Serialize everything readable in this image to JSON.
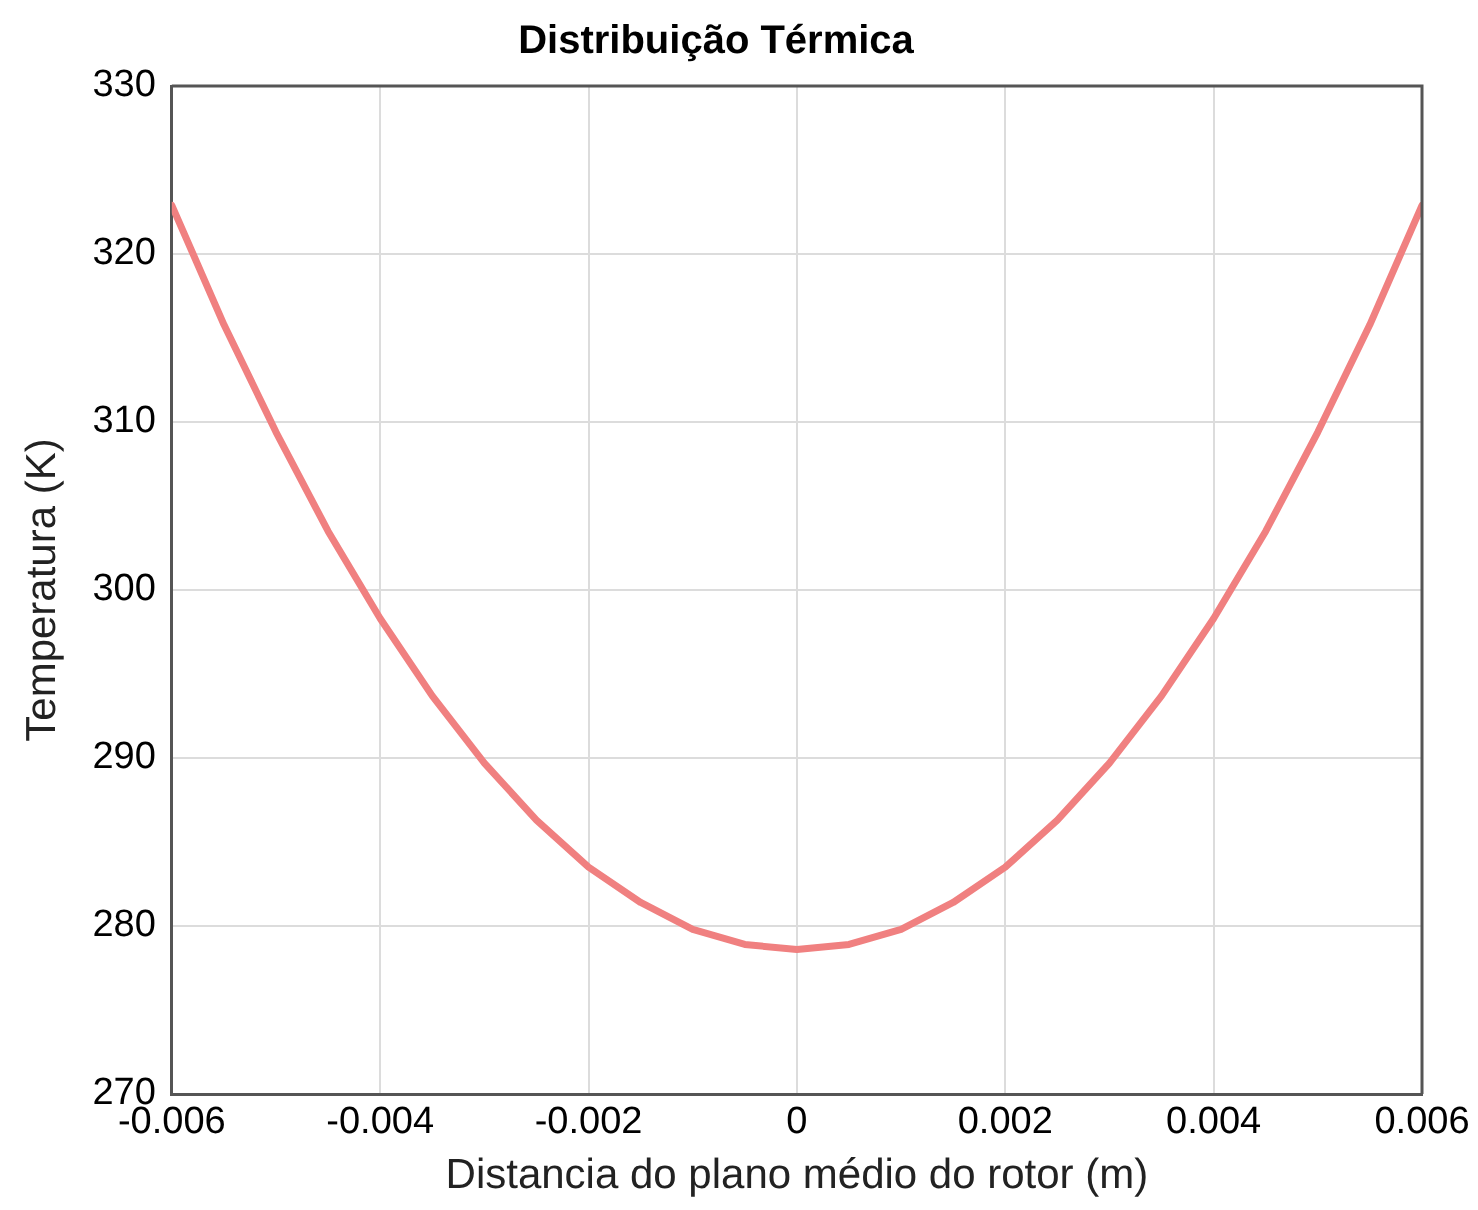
{
  "chart_data": {
    "type": "line",
    "title": "Distribuição Térmica",
    "xlabel": "Distancia do plano médio do rotor (m)",
    "ylabel": "Temperatura (K)",
    "x": [
      -0.006,
      -0.0055,
      -0.005,
      -0.0045,
      -0.004,
      -0.0035,
      -0.003,
      -0.0025,
      -0.002,
      -0.0015,
      -0.001,
      -0.0005,
      0,
      0.0005,
      0.001,
      0.0015,
      0.002,
      0.0025,
      0.003,
      0.0035,
      0.004,
      0.0045,
      0.005,
      0.0055,
      0.006
    ],
    "series": [
      {
        "color": "#f08080",
        "values": [
          322.9,
          315.8,
          309.4,
          303.5,
          298.3,
          293.7,
          289.7,
          286.3,
          283.5,
          281.4,
          279.8,
          278.9,
          278.6,
          278.9,
          279.8,
          281.4,
          283.5,
          286.3,
          289.7,
          293.7,
          298.3,
          303.5,
          309.4,
          315.8,
          322.9
        ]
      }
    ],
    "xlim": [
      -0.006,
      0.006
    ],
    "xticks": [
      -0.006,
      -0.004,
      -0.002,
      0,
      0.002,
      0.004,
      0.006
    ],
    "ylim": [
      270,
      330
    ],
    "yticks": [
      270,
      280,
      290,
      300,
      310,
      320,
      330
    ],
    "grid": true,
    "legend": false,
    "marker": "none",
    "line_style": "solid"
  }
}
